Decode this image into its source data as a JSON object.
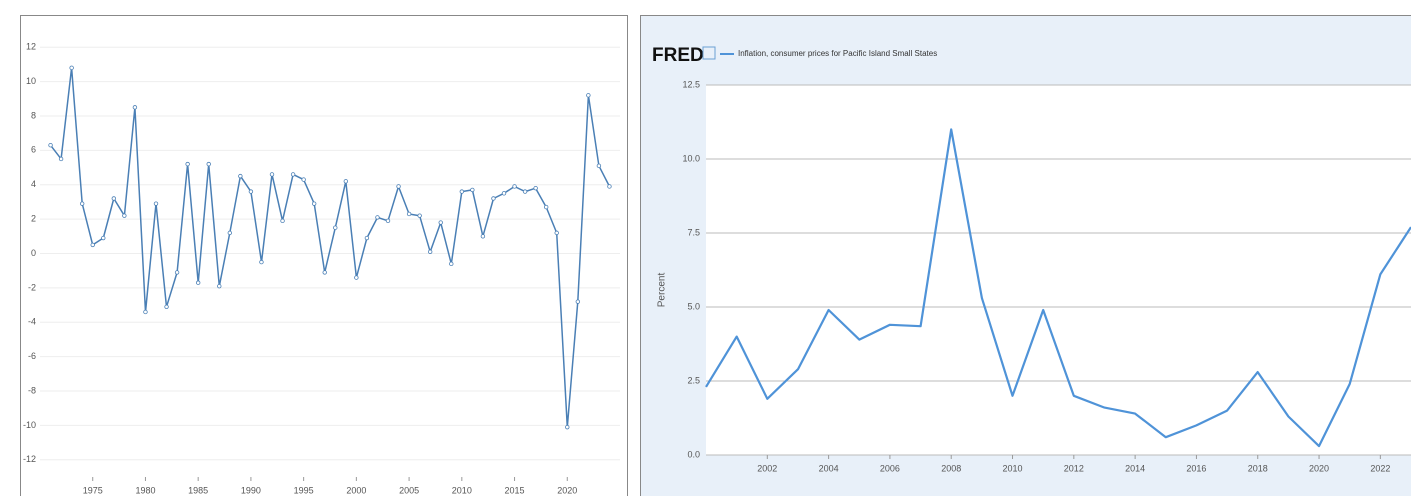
{
  "chart_data": [
    {
      "type": "line",
      "color": "#4a7fb5",
      "markers": true,
      "grid": true,
      "x": [
        1971,
        1972,
        1973,
        1974,
        1975,
        1976,
        1977,
        1978,
        1979,
        1980,
        1981,
        1982,
        1983,
        1984,
        1985,
        1986,
        1987,
        1988,
        1989,
        1990,
        1991,
        1992,
        1993,
        1994,
        1995,
        1996,
        1997,
        1998,
        1999,
        2000,
        2001,
        2002,
        2003,
        2004,
        2005,
        2006,
        2007,
        2008,
        2009,
        2010,
        2011,
        2012,
        2013,
        2014,
        2015,
        2016,
        2017,
        2018,
        2019,
        2020,
        2021,
        2022,
        2023,
        2024
      ],
      "values": [
        6.3,
        5.5,
        10.8,
        2.9,
        0.5,
        0.9,
        3.2,
        2.2,
        8.5,
        -3.4,
        2.9,
        -3.1,
        -1.1,
        5.2,
        -1.7,
        5.2,
        -1.9,
        1.2,
        4.5,
        3.6,
        -0.5,
        4.6,
        1.9,
        4.6,
        4.3,
        2.9,
        -1.1,
        1.5,
        4.2,
        -1.4,
        0.9,
        2.1,
        1.9,
        3.9,
        2.3,
        2.2,
        0.1,
        1.8,
        -0.6,
        3.6,
        3.7,
        1.0,
        3.2,
        3.5,
        3.9,
        3.6,
        3.8,
        2.7,
        1.2,
        -10.1,
        -2.8,
        9.2,
        5.1,
        3.9
      ],
      "xlim": [
        1970,
        2025
      ],
      "xticks": [
        1975,
        1980,
        1985,
        1990,
        1995,
        2000,
        2005,
        2010,
        2015,
        2020
      ],
      "ylim": [
        -13,
        13
      ],
      "yticks": [
        12,
        10,
        8,
        6,
        4,
        2,
        0,
        -2,
        -4,
        -6,
        -8,
        -10,
        -12
      ]
    },
    {
      "type": "line",
      "color": "#4f93d8",
      "markers": false,
      "grid": true,
      "logo": "FRED",
      "title": "Inflation, consumer prices for Pacific Island Small States",
      "ylabel": "Percent",
      "x": [
        2000,
        2001,
        2002,
        2003,
        2004,
        2005,
        2006,
        2007,
        2008,
        2009,
        2010,
        2011,
        2012,
        2013,
        2014,
        2015,
        2016,
        2017,
        2018,
        2019,
        2020,
        2021,
        2022,
        2023
      ],
      "values": [
        2.3,
        4.0,
        1.9,
        2.9,
        4.9,
        3.9,
        4.4,
        4.35,
        11.0,
        5.3,
        2.0,
        4.9,
        2.0,
        1.6,
        1.4,
        0.6,
        1.0,
        1.5,
        2.8,
        1.3,
        0.3,
        2.4,
        6.1,
        7.7
      ],
      "xlim": [
        2000,
        2023
      ],
      "xticks": [
        2002,
        2004,
        2006,
        2008,
        2010,
        2012,
        2014,
        2016,
        2018,
        2020,
        2022
      ],
      "ylim": [
        0,
        12.5
      ],
      "yticks": [
        {
          "value": 0,
          "label": "0.0"
        },
        {
          "value": 2.5,
          "label": "2.5"
        },
        {
          "value": 5,
          "label": "5.0"
        },
        {
          "value": 7.5,
          "label": "7.5"
        },
        {
          "value": 10,
          "label": "10.0"
        },
        {
          "value": 12.5,
          "label": "12.5"
        }
      ]
    }
  ]
}
